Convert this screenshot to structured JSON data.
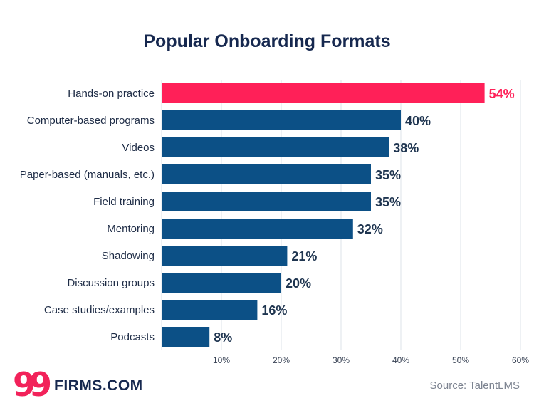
{
  "title": "Popular Onboarding Formats",
  "source": "Source: TalentLMS",
  "logo": {
    "mark": "99",
    "text": "FIRMS.COM"
  },
  "colors": {
    "highlight": "#ff2058",
    "bar": "#0c5086",
    "title": "#16284f",
    "grid": "#dde3ea"
  },
  "chart_data": {
    "type": "bar",
    "orientation": "horizontal",
    "categories": [
      "Hands-on practice",
      "Computer-based programs",
      "Videos",
      "Paper-based (manuals, etc.)",
      "Field training",
      "Mentoring",
      "Shadowing",
      "Discussion groups",
      "Case studies/examples",
      "Podcasts"
    ],
    "values": [
      54,
      40,
      38,
      35,
      35,
      32,
      21,
      20,
      16,
      8
    ],
    "value_labels": [
      "54%",
      "40%",
      "38%",
      "35%",
      "35%",
      "32%",
      "21%",
      "20%",
      "16%",
      "8%"
    ],
    "highlight_index": 0,
    "xlim": [
      0,
      60
    ],
    "xticks": [
      10,
      20,
      30,
      40,
      50,
      60
    ],
    "xtick_labels": [
      "10%",
      "20%",
      "30%",
      "40%",
      "50%",
      "60%"
    ],
    "grid": true
  }
}
